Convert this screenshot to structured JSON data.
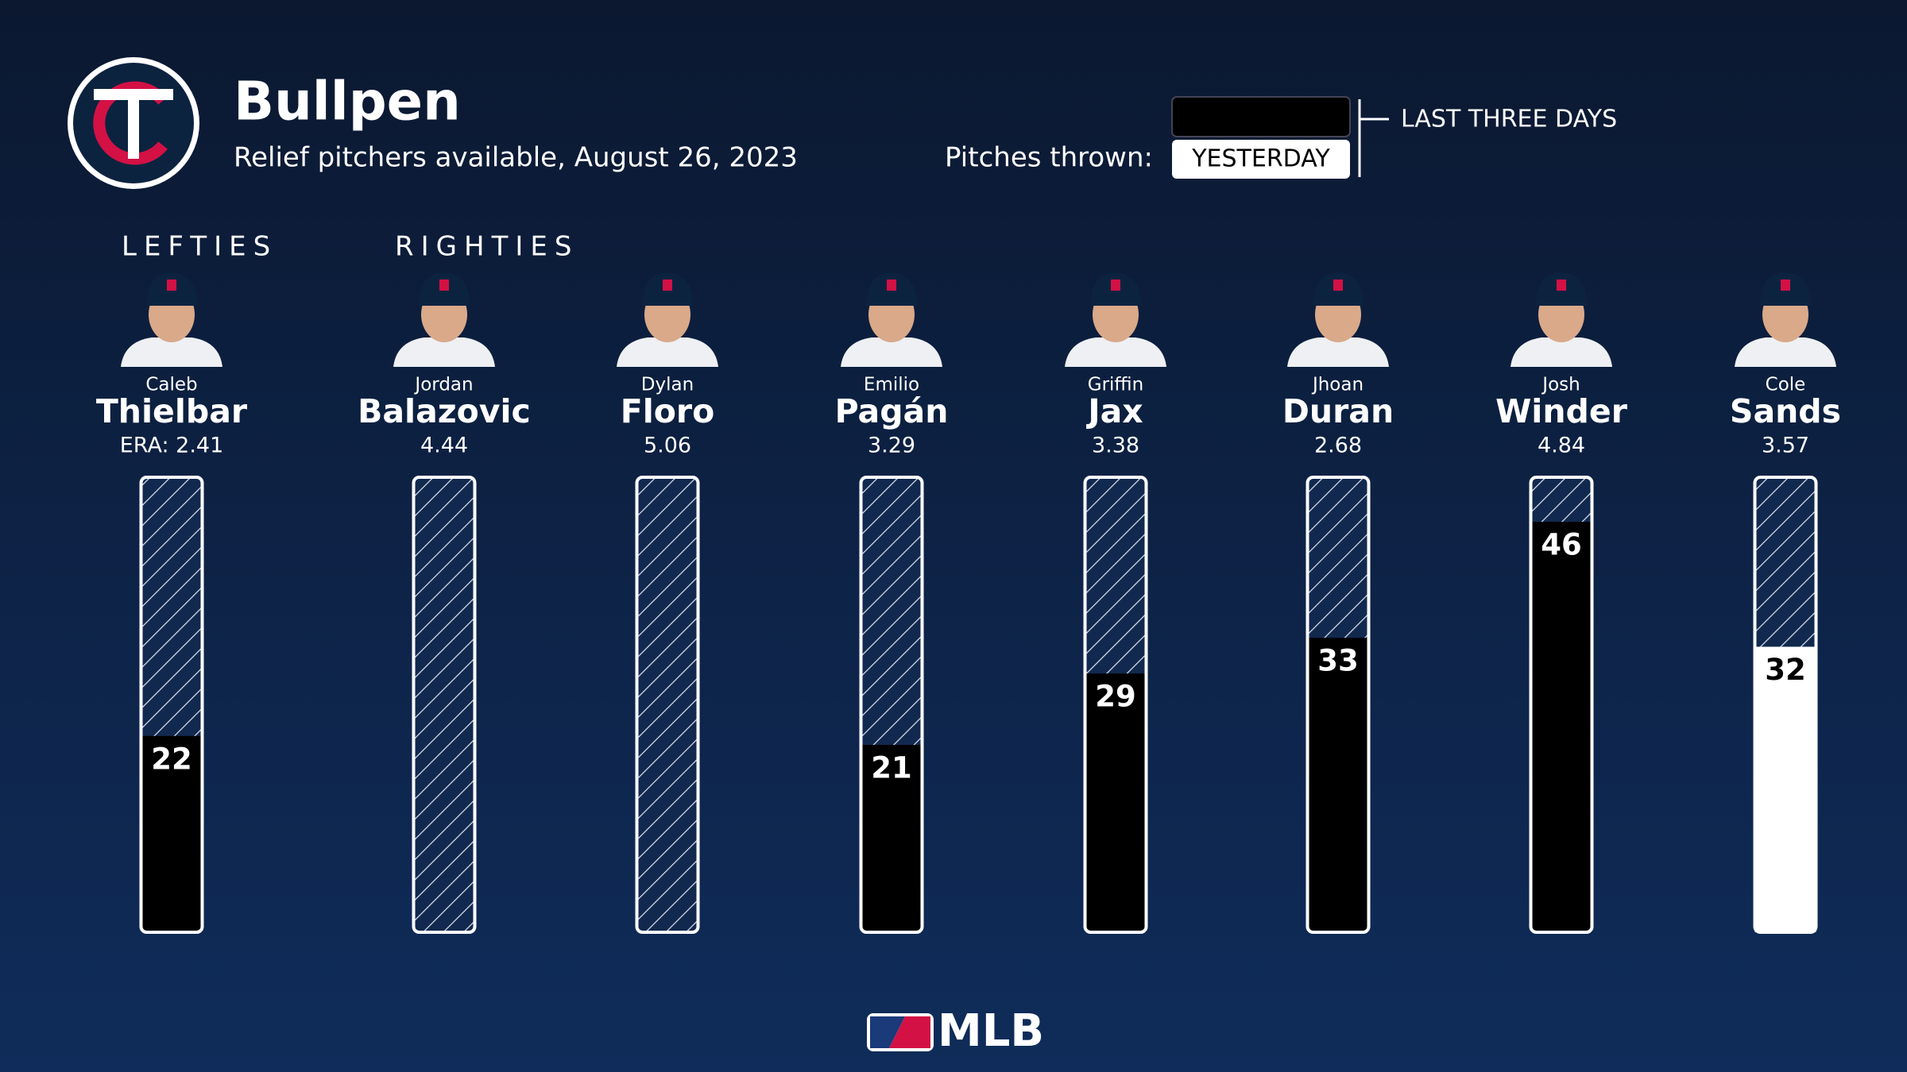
{
  "header": {
    "title": "Bullpen",
    "subtitle": "Relief pitchers available, August 26, 2023"
  },
  "legend": {
    "label": "Pitches thrown:",
    "entries": [
      {
        "label": "LAST THREE DAYS",
        "color": "#000000"
      },
      {
        "label": "YESTERDAY",
        "color": "#ffffff"
      }
    ]
  },
  "pitch_scale": [
    0,
    51
  ],
  "groups": [
    {
      "label": "LEFTIES",
      "pitchers": [
        {
          "first": "Caleb",
          "last": "Thielbar",
          "era": "ERA: 2.41",
          "pitches": 22,
          "color": "#000000"
        }
      ]
    },
    {
      "label": "RIGHTIES",
      "pitchers": [
        {
          "first": "Jordan",
          "last": "Balazovic",
          "era": "4.44",
          "pitches": null
        },
        {
          "first": "Dylan",
          "last": "Floro",
          "era": "5.06",
          "pitches": null
        },
        {
          "first": "Emilio",
          "last": "Pagán",
          "era": "3.29",
          "pitches": 21,
          "color": "#000000"
        },
        {
          "first": "Griffin",
          "last": "Jax",
          "era": "3.38",
          "pitches": 29,
          "color": "#000000"
        },
        {
          "first": "Jhoan",
          "last": "Duran",
          "era": "2.68",
          "pitches": 33,
          "color": "#000000"
        },
        {
          "first": "Josh",
          "last": "Winder",
          "era": "4.84",
          "pitches": 46,
          "color": "#000000"
        },
        {
          "first": "Cole",
          "last": "Sands",
          "era": "3.57",
          "pitches": 32,
          "color": "#ffffff"
        }
      ]
    }
  ],
  "footer": {
    "logo_text": "MLB"
  }
}
